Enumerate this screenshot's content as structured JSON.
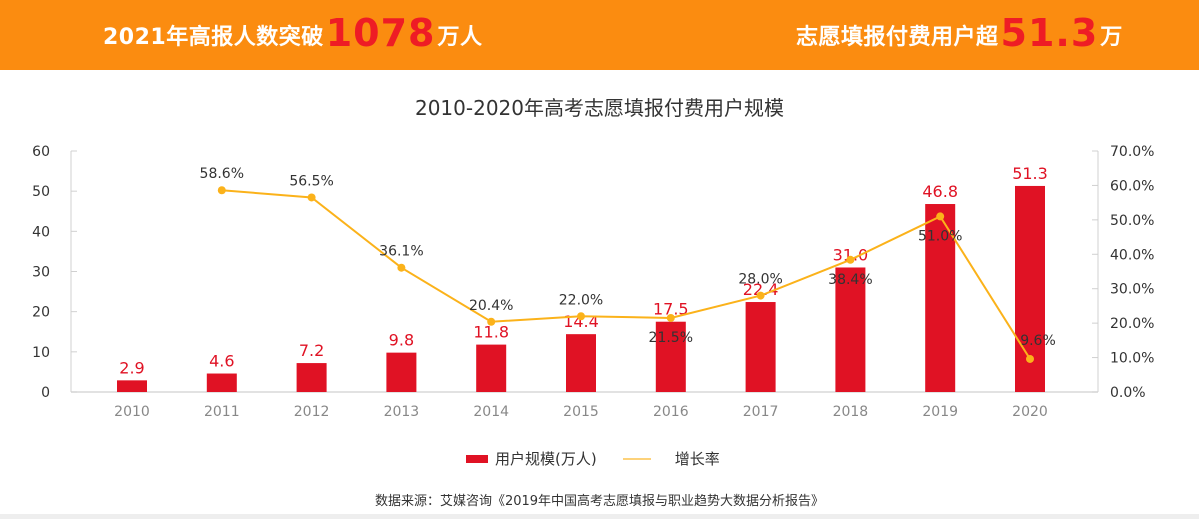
{
  "banner": {
    "left": {
      "prefix": "2021年高报人数突破",
      "number": "1078",
      "suffix": "万人"
    },
    "right": {
      "prefix": "志愿填报付费用户超",
      "number": "51.3",
      "suffix": "万"
    },
    "background_color": "#fb8c10",
    "highlight_color": "#ee1c25"
  },
  "source_note": "数据来源：艾媒咨询《2019年中国高考志愿填报与职业趋势大数据分析报告》",
  "chart_data": {
    "type": "bar",
    "title": "2010-2020年高考志愿填报付费用户规模",
    "xlabel": "",
    "ylabel": "",
    "categories": [
      "2010",
      "2011",
      "2012",
      "2013",
      "2014",
      "2015",
      "2016",
      "2017",
      "2018",
      "2019",
      "2020"
    ],
    "series": [
      {
        "name": "用户规模(万人)",
        "type": "bar",
        "axis": "left",
        "color": "#e01224",
        "values": [
          2.9,
          4.6,
          7.2,
          9.8,
          11.8,
          14.4,
          17.5,
          22.4,
          31.0,
          46.8,
          51.3
        ],
        "labels": [
          "2.9",
          "4.6",
          "7.2",
          "9.8",
          "11.8",
          "14.4",
          "17.5",
          "22.4",
          "31.0",
          "46.8",
          "51.3"
        ]
      },
      {
        "name": "增长率",
        "type": "line",
        "axis": "right",
        "color": "#fbb21a",
        "values": [
          null,
          58.6,
          56.5,
          36.1,
          20.4,
          22.0,
          21.5,
          28.0,
          38.4,
          51.0,
          9.6
        ],
        "labels": [
          "",
          "58.6%",
          "56.5%",
          "36.1%",
          "20.4%",
          "22.0%",
          "21.5%",
          "28.0%",
          "38.4%",
          "51.0%",
          "9.6%"
        ]
      }
    ],
    "y_left": {
      "range": [
        0,
        60
      ],
      "ticks": [
        "0",
        "10",
        "20",
        "30",
        "40",
        "50",
        "60"
      ]
    },
    "y_right": {
      "range": [
        0,
        70
      ],
      "ticks": [
        "0.0%",
        "10.0%",
        "20.0%",
        "30.0%",
        "40.0%",
        "50.0%",
        "60.0%",
        "70.0%"
      ]
    },
    "grid": false,
    "legend": "bottom-center",
    "legend_entries": [
      "用户规模(万人)",
      "增长率"
    ]
  }
}
